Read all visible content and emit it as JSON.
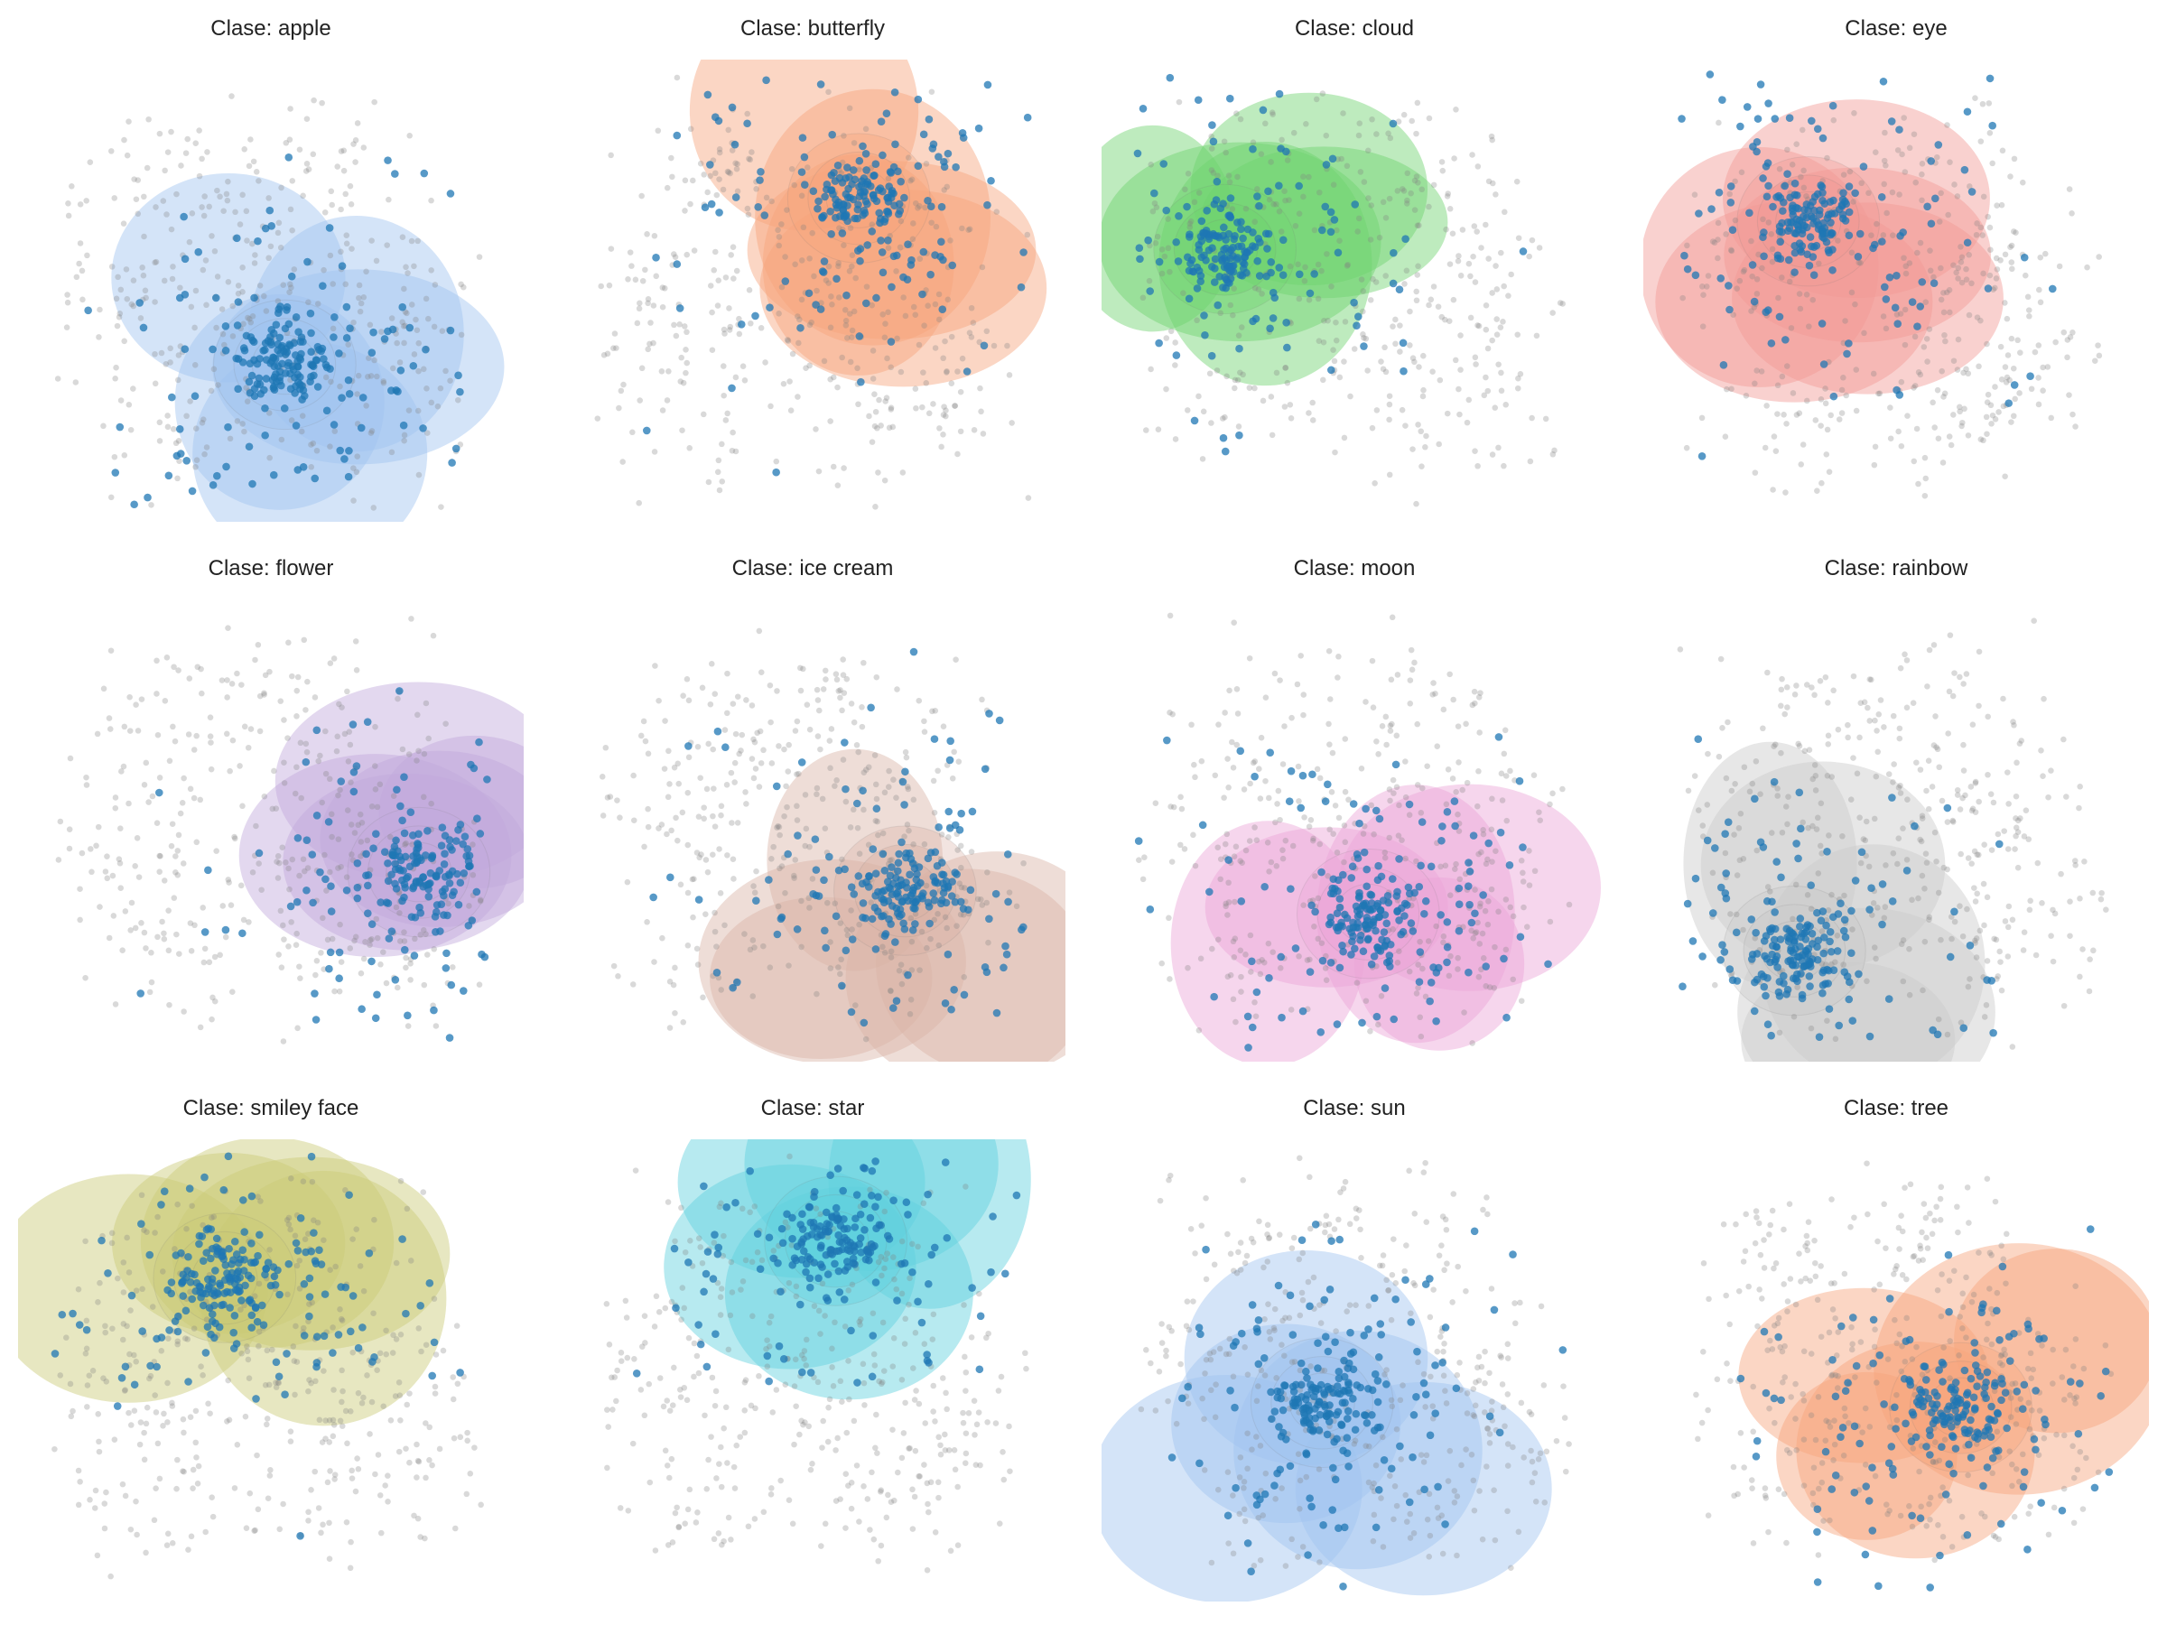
{
  "figure": {
    "panels": [
      {
        "title": "Clase: apple",
        "color": "#9fc3ef",
        "hot": [
          0.53,
          0.66
        ]
      },
      {
        "title": "Clase: butterfly",
        "color": "#f7a57c",
        "hot": [
          0.6,
          0.3
        ]
      },
      {
        "title": "Clase: cloud",
        "color": "#6fd36f",
        "hot": [
          0.22,
          0.41
        ]
      },
      {
        "title": "Clase: eye",
        "color": "#f29a95",
        "hot": [
          0.31,
          0.35
        ]
      },
      {
        "title": "Clase: flower",
        "color": "#c2a8dc",
        "hot": [
          0.82,
          0.59
        ]
      },
      {
        "title": "Clase: ice cream",
        "color": "#d9b3a6",
        "hot": [
          0.7,
          0.63
        ]
      },
      {
        "title": "Clase: moon",
        "color": "#eba5d7",
        "hot": [
          0.53,
          0.68
        ]
      },
      {
        "title": "Clase: rainbow",
        "color": "#c9c9c9",
        "hot": [
          0.28,
          0.76
        ]
      },
      {
        "title": "Clase: smiley face",
        "color": "#c9c976",
        "hot": [
          0.4,
          0.3
        ]
      },
      {
        "title": "Clase: star",
        "color": "#5fd1de",
        "hot": [
          0.55,
          0.22
        ]
      },
      {
        "title": "Clase: sun",
        "color": "#9fc3ef",
        "hot": [
          0.43,
          0.57
        ]
      },
      {
        "title": "Clase: tree",
        "color": "#f7a57c",
        "hot": [
          0.64,
          0.58
        ]
      }
    ]
  },
  "chart_data": {
    "type": "scatter",
    "title": "",
    "xlabel": "",
    "ylabel": "",
    "grid": false,
    "axes": "off",
    "point_colors": {
      "class_points": "#1f77b4",
      "other_points": "#808080"
    },
    "panels": [
      "Clase: apple",
      "Clase: butterfly",
      "Clase: cloud",
      "Clase: eye",
      "Clase: flower",
      "Clase: ice cream",
      "Clase: moon",
      "Clase: rainbow",
      "Clase: smiley face",
      "Clase: star",
      "Clase: sun",
      "Clase: tree"
    ]
  }
}
